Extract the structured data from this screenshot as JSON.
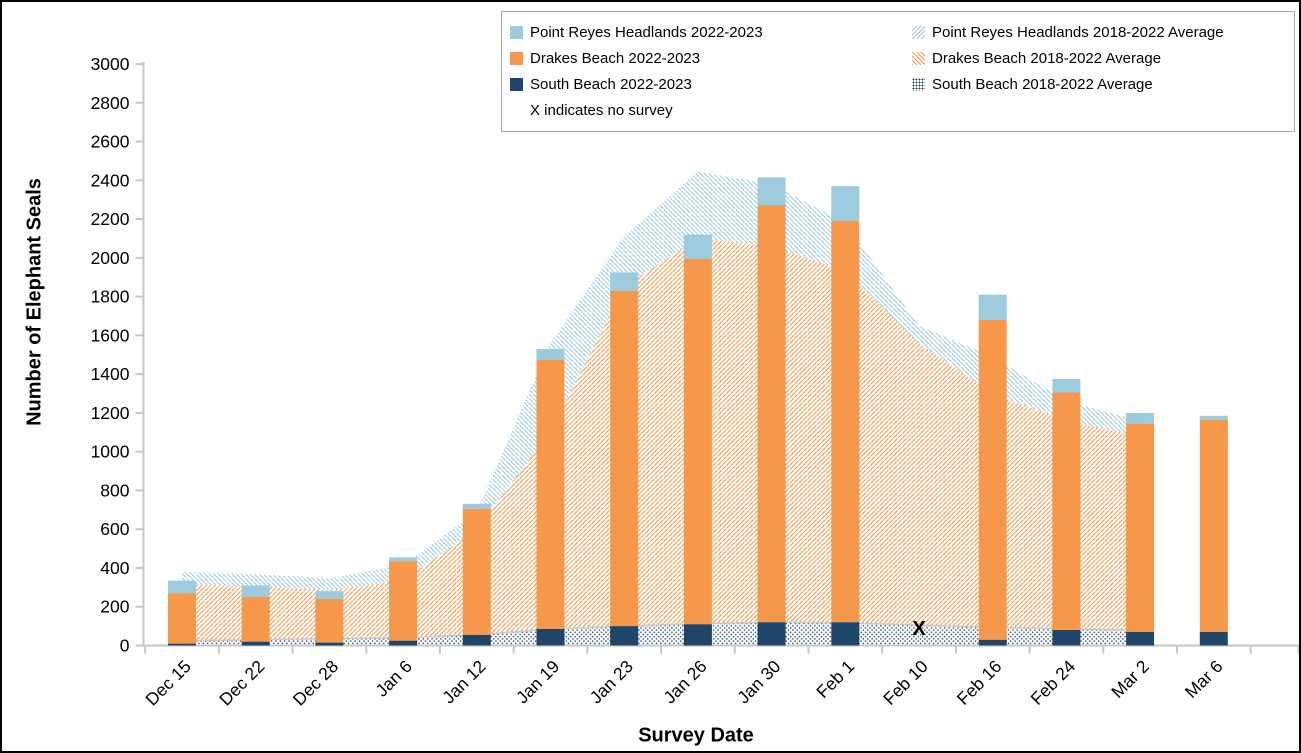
{
  "legend": {
    "items": [
      {
        "label": "Point Reyes Headlands 2022-2023",
        "swatch": "solid-lightblue"
      },
      {
        "label": "Point Reyes Headlands 2018-2022 Average",
        "swatch": "hatch-blue"
      },
      {
        "label": "Drakes Beach 2022-2023",
        "swatch": "solid-orange"
      },
      {
        "label": "Drakes Beach 2018-2022 Average",
        "swatch": "hatch-orange"
      },
      {
        "label": "South Beach 2022-2023",
        "swatch": "solid-navy"
      },
      {
        "label": "South Beach 2018-2022 Average",
        "swatch": "dots-navy"
      }
    ],
    "note": "X indicates no survey"
  },
  "chart_data": {
    "type": "bar",
    "subtype": "stacked bars (2022-2023 counts) over stacked area (2018-2022 averages)",
    "title": "",
    "xlabel": "Survey Date",
    "ylabel": "Number of Elephant Seals",
    "ylim": [
      0,
      3000
    ],
    "yticks": [
      0,
      200,
      400,
      600,
      800,
      1000,
      1200,
      1400,
      1600,
      1800,
      2000,
      2200,
      2400,
      2600,
      2800,
      3000
    ],
    "grid": false,
    "legend_position": "top-right inside frame",
    "categories": [
      "Dec 15",
      "Dec 22",
      "Dec 28",
      "Jan 6",
      "Jan 12",
      "Jan 19",
      "Jan 23",
      "Jan 26",
      "Jan 30",
      "Feb 1",
      "Feb 10",
      "Feb 16",
      "Feb 24",
      "Mar 2",
      "Mar 6"
    ],
    "bar_series": [
      {
        "name": "South Beach 2022-2023",
        "color": "#1f4568",
        "values": [
          10,
          20,
          15,
          25,
          55,
          85,
          100,
          110,
          120,
          120,
          null,
          30,
          80,
          70,
          70
        ]
      },
      {
        "name": "Drakes Beach 2022-2023",
        "color": "#f5984b",
        "values": [
          260,
          230,
          225,
          410,
          650,
          1390,
          1730,
          1885,
          2150,
          2070,
          null,
          1650,
          1225,
          1075,
          1095
        ]
      },
      {
        "name": "Point Reyes Headlands 2022-2023",
        "color": "#9bcbdc",
        "values": [
          65,
          60,
          40,
          20,
          25,
          55,
          95,
          125,
          145,
          180,
          null,
          130,
          70,
          55,
          20
        ]
      }
    ],
    "bar_totals": [
      335,
      310,
      280,
      455,
      730,
      1530,
      1925,
      2120,
      2415,
      2370,
      null,
      1810,
      1375,
      1200,
      1185
    ],
    "area_series": [
      {
        "name": "South Beach 2018-2022 Average",
        "pattern": "dots-navy",
        "color": "#1f4568",
        "values": [
          25,
          30,
          35,
          40,
          55,
          85,
          100,
          113,
          120,
          117,
          105,
          95,
          85,
          80,
          null
        ]
      },
      {
        "name": "Drakes Beach 2018-2022 Average",
        "pattern": "hatch-orange",
        "color": "#f5984b",
        "values": [
          290,
          275,
          250,
          295,
          545,
          1015,
          1750,
          1987,
          1940,
          1813,
          1455,
          1205,
          1075,
          1000,
          null
        ]
      },
      {
        "name": "Point Reyes Headlands 2018-2022 Average",
        "pattern": "hatch-blue",
        "color": "#9bcbdc",
        "values": [
          65,
          62,
          63,
          80,
          90,
          460,
          260,
          345,
          320,
          250,
          90,
          190,
          100,
          80,
          null
        ]
      }
    ],
    "area_totals": [
      380,
      367,
      348,
      415,
      690,
      1560,
      2110,
      2445,
      2380,
      2180,
      1650,
      1490,
      1260,
      1160,
      null
    ],
    "no_survey": {
      "category": "Feb 10",
      "marker": "X",
      "y_position": 95
    },
    "colors": {
      "point_reyes_headlands": "#9bcbdc",
      "drakes_beach": "#f5984b",
      "south_beach": "#1f4568",
      "axis_line": "#c6c6c6",
      "area_top_line": "#c9c9c9",
      "text": "#000000"
    }
  }
}
